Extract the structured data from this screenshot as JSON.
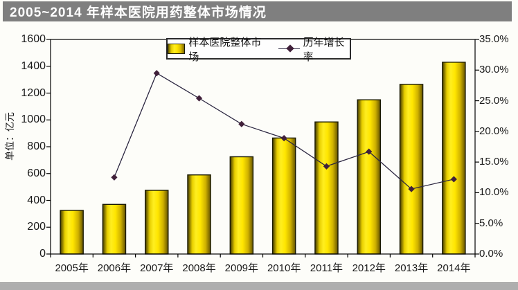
{
  "title": "2005~2014 年样本医院用药整体市场情况",
  "title_bar": {
    "bg": "#7f7f7f",
    "text_color": "#ffffff"
  },
  "chart_data": {
    "type": "bar",
    "subtype": "bar-line-combo",
    "categories": [
      "2005年",
      "2006年",
      "2007年",
      "2008年",
      "2009年",
      "2010年",
      "2011年",
      "2012年",
      "2013年",
      "2014年"
    ],
    "series": [
      {
        "name": "样本医院整体市场",
        "type": "bar",
        "axis": "left",
        "values": [
          325,
          370,
          475,
          590,
          725,
          865,
          985,
          1150,
          1265,
          1430
        ]
      },
      {
        "name": "历年增长率",
        "type": "line",
        "axis": "right",
        "values": [
          null,
          12.5,
          29.5,
          25.4,
          21.2,
          18.9,
          14.3,
          16.7,
          10.6,
          12.2
        ]
      }
    ],
    "left_axis": {
      "title": "单位：亿元",
      "min": 0,
      "max": 1600,
      "step": 200
    },
    "right_axis": {
      "min": 0,
      "max": 35,
      "step": 5,
      "suffix": "%",
      "decimals": 1
    },
    "legend_position": "top-center",
    "grid": false,
    "colors": {
      "bar_bright": "#ffe600",
      "bar_edge": "#6b5e00",
      "bar_outline": "#1a1a00",
      "line": "#2b2640",
      "marker": "#40203a",
      "axis": "#000000"
    }
  }
}
